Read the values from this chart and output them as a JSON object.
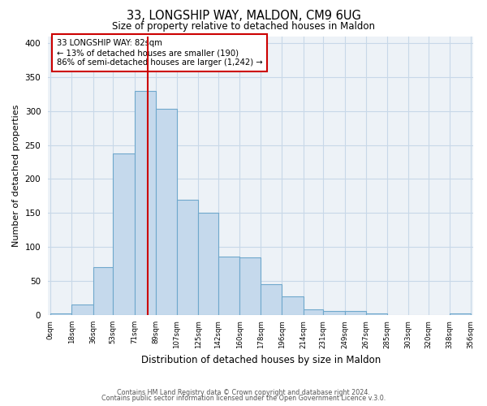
{
  "title1": "33, LONGSHIP WAY, MALDON, CM9 6UG",
  "title2": "Size of property relative to detached houses in Maldon",
  "xlabel": "Distribution of detached houses by size in Maldon",
  "ylabel": "Number of detached properties",
  "bin_edges": [
    0,
    18,
    36,
    53,
    71,
    89,
    107,
    125,
    142,
    160,
    178,
    196,
    214,
    231,
    249,
    267,
    285,
    303,
    320,
    338,
    356
  ],
  "bin_counts": [
    2,
    15,
    70,
    238,
    330,
    303,
    170,
    150,
    86,
    85,
    45,
    27,
    8,
    5,
    5,
    2,
    0,
    0,
    0,
    2
  ],
  "bar_color": "#c5d9ec",
  "bar_edgecolor": "#6fa8cc",
  "vline_x": 82,
  "vline_color": "#cc0000",
  "annotation_line1": "33 LONGSHIP WAY: 82sqm",
  "annotation_line2": "← 13% of detached houses are smaller (190)",
  "annotation_line3": "86% of semi-detached houses are larger (1,242) →",
  "ylim_max": 410,
  "yticks": [
    0,
    50,
    100,
    150,
    200,
    250,
    300,
    350,
    400
  ],
  "tick_labels": [
    "0sqm",
    "18sqm",
    "36sqm",
    "53sqm",
    "71sqm",
    "89sqm",
    "107sqm",
    "125sqm",
    "142sqm",
    "160sqm",
    "178sqm",
    "196sqm",
    "214sqm",
    "231sqm",
    "249sqm",
    "267sqm",
    "285sqm",
    "303sqm",
    "320sqm",
    "338sqm",
    "356sqm"
  ],
  "tick_positions": [
    0,
    18,
    36,
    53,
    71,
    89,
    107,
    125,
    142,
    160,
    178,
    196,
    214,
    231,
    249,
    267,
    285,
    303,
    320,
    338,
    356
  ],
  "footer1": "Contains HM Land Registry data © Crown copyright and database right 2024.",
  "footer2": "Contains public sector information licensed under the Open Government Licence v.3.0.",
  "bg_color": "#edf2f7",
  "grid_color": "#c8d8e8"
}
